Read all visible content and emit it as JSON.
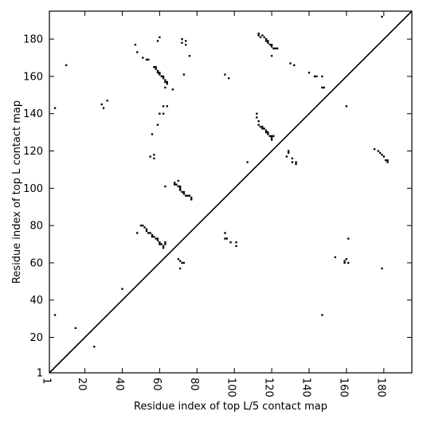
{
  "chart_data": {
    "type": "heatmap",
    "title": "",
    "xlabel": "Residue index of top L/5 contact map",
    "ylabel": "Residue index of top L contact map",
    "xlim": [
      1,
      195
    ],
    "ylim": [
      1,
      195
    ],
    "x_ticks": [
      1,
      20,
      40,
      60,
      80,
      100,
      120,
      140,
      160,
      180
    ],
    "y_ticks": [
      1,
      20,
      40,
      60,
      80,
      100,
      120,
      140,
      160,
      180
    ],
    "x_tick_labels": [
      "1",
      "20",
      "40",
      "60",
      "80",
      "100",
      "120",
      "140",
      "160",
      "180"
    ],
    "y_tick_labels": [
      "1",
      "20",
      "40",
      "60",
      "80",
      "100",
      "120",
      "140",
      "160",
      "180"
    ],
    "diagonal": true,
    "grid": false,
    "colors": {
      "contact": "#000000",
      "background": "#ffffff",
      "diagonal": "#000000"
    },
    "contacts_lower": [
      [
        4,
        32
      ],
      [
        15,
        25
      ],
      [
        25,
        15
      ],
      [
        40,
        46
      ],
      [
        48,
        76
      ],
      [
        50,
        80
      ],
      [
        51,
        80
      ],
      [
        52,
        79
      ],
      [
        53,
        78
      ],
      [
        53,
        77
      ],
      [
        54,
        76
      ],
      [
        55,
        76
      ],
      [
        56,
        75
      ],
      [
        56,
        74
      ],
      [
        57,
        74
      ],
      [
        58,
        73
      ],
      [
        59,
        73
      ],
      [
        59,
        72
      ],
      [
        60,
        71
      ],
      [
        60,
        70
      ],
      [
        61,
        70
      ],
      [
        62,
        69
      ],
      [
        62,
        68
      ],
      [
        63,
        71
      ],
      [
        63,
        70
      ],
      [
        70,
        62
      ],
      [
        71,
        61
      ],
      [
        72,
        60
      ],
      [
        71,
        57
      ],
      [
        73,
        60
      ],
      [
        95,
        76
      ],
      [
        95,
        73
      ],
      [
        96,
        73
      ],
      [
        98,
        71
      ],
      [
        101,
        71
      ],
      [
        101,
        69
      ],
      [
        147,
        32
      ],
      [
        154,
        63
      ],
      [
        159,
        61
      ],
      [
        159,
        60
      ],
      [
        160,
        62
      ],
      [
        161,
        60
      ],
      [
        161,
        73
      ],
      [
        179,
        57
      ]
    ],
    "contacts_upper": [
      [
        4,
        143
      ],
      [
        10,
        166
      ],
      [
        29,
        145
      ],
      [
        30,
        143
      ],
      [
        32,
        147
      ],
      [
        47,
        177
      ],
      [
        48,
        173
      ],
      [
        51,
        170
      ],
      [
        53,
        169
      ],
      [
        54,
        169
      ],
      [
        55,
        117
      ],
      [
        56,
        129
      ],
      [
        57,
        116
      ],
      [
        57,
        118
      ],
      [
        57,
        165
      ],
      [
        58,
        164
      ],
      [
        58,
        165
      ],
      [
        59,
        163
      ],
      [
        59,
        162
      ],
      [
        60,
        162
      ],
      [
        60,
        161
      ],
      [
        61,
        160
      ],
      [
        62,
        160
      ],
      [
        62,
        159
      ],
      [
        63,
        158
      ],
      [
        63,
        157
      ],
      [
        64,
        157
      ],
      [
        64,
        156
      ],
      [
        59,
        179
      ],
      [
        60,
        181
      ],
      [
        59,
        134
      ],
      [
        60,
        140
      ],
      [
        62,
        140
      ],
      [
        62,
        144
      ],
      [
        64,
        144
      ],
      [
        63,
        154
      ],
      [
        67,
        153
      ],
      [
        63,
        101
      ],
      [
        68,
        102
      ],
      [
        68,
        103
      ],
      [
        69,
        102
      ],
      [
        70,
        104
      ],
      [
        70,
        101
      ],
      [
        71,
        101
      ],
      [
        71,
        100
      ],
      [
        71,
        99
      ],
      [
        72,
        98
      ],
      [
        73,
        98
      ],
      [
        73,
        97
      ],
      [
        74,
        96
      ],
      [
        75,
        96
      ],
      [
        76,
        96
      ],
      [
        77,
        95
      ],
      [
        77,
        94
      ],
      [
        72,
        180
      ],
      [
        72,
        178
      ],
      [
        73,
        161
      ],
      [
        74,
        179
      ],
      [
        74,
        177
      ],
      [
        76,
        171
      ],
      [
        95,
        161
      ],
      [
        97,
        159
      ],
      [
        107,
        114
      ],
      [
        112,
        140
      ],
      [
        112,
        138
      ],
      [
        113,
        136
      ],
      [
        113,
        134
      ],
      [
        114,
        133
      ],
      [
        115,
        133
      ],
      [
        115,
        132
      ],
      [
        116,
        132
      ],
      [
        117,
        131
      ],
      [
        117,
        130
      ],
      [
        118,
        130
      ],
      [
        118,
        129
      ],
      [
        119,
        128
      ],
      [
        120,
        128
      ],
      [
        120,
        127
      ],
      [
        120,
        126
      ],
      [
        121,
        128
      ],
      [
        113,
        183
      ],
      [
        113,
        182
      ],
      [
        114,
        181
      ],
      [
        115,
        182
      ],
      [
        116,
        181
      ],
      [
        117,
        180
      ],
      [
        117,
        179
      ],
      [
        118,
        179
      ],
      [
        118,
        178
      ],
      [
        119,
        177
      ],
      [
        120,
        177
      ],
      [
        120,
        176
      ],
      [
        121,
        175
      ],
      [
        122,
        175
      ],
      [
        123,
        175
      ],
      [
        120,
        171
      ],
      [
        128,
        117
      ],
      [
        129,
        119
      ],
      [
        129,
        120
      ],
      [
        131,
        116
      ],
      [
        131,
        114
      ],
      [
        133,
        114
      ],
      [
        133,
        113
      ],
      [
        130,
        167
      ],
      [
        132,
        166
      ],
      [
        140,
        162
      ],
      [
        143,
        160
      ],
      [
        144,
        160
      ],
      [
        147,
        160
      ],
      [
        147,
        154
      ],
      [
        148,
        154
      ],
      [
        160,
        144
      ],
      [
        175,
        121
      ],
      [
        177,
        120
      ],
      [
        178,
        119
      ],
      [
        179,
        118
      ],
      [
        180,
        117
      ],
      [
        181,
        115
      ],
      [
        182,
        114
      ],
      [
        182,
        115
      ],
      [
        179,
        192
      ]
    ]
  }
}
